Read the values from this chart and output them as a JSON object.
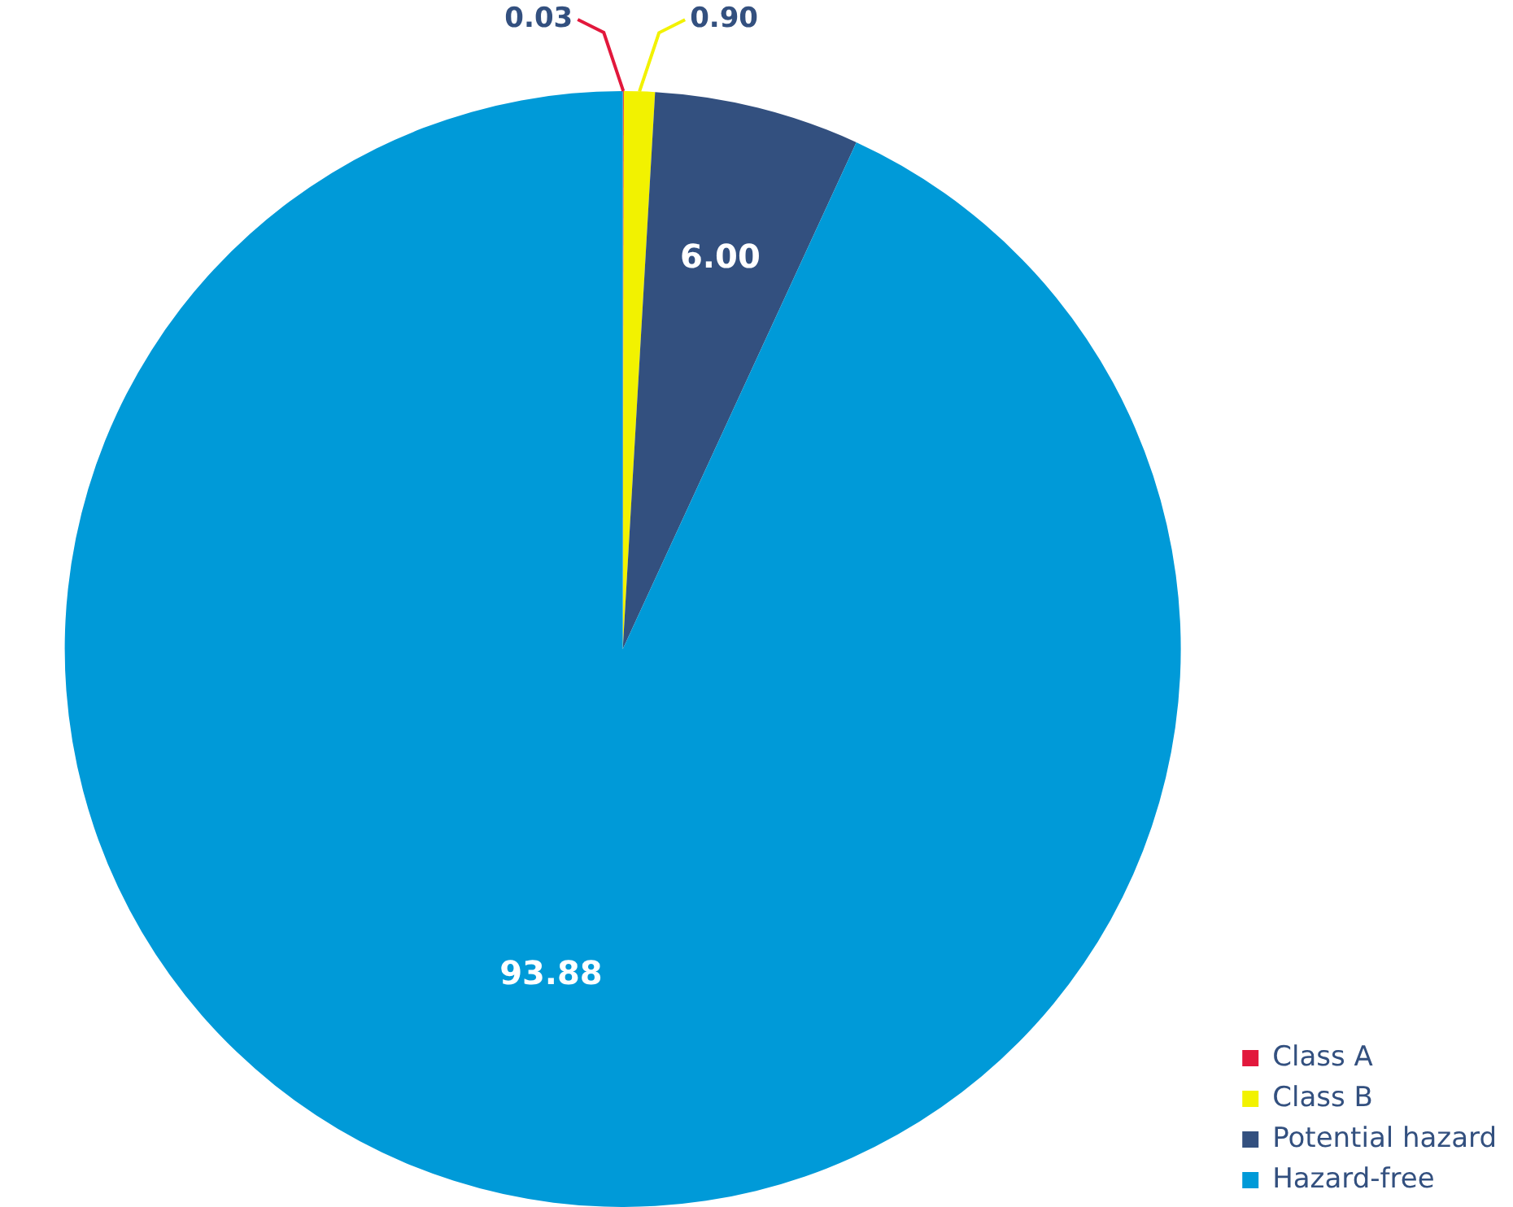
{
  "chart_data": {
    "type": "pie",
    "categories": [
      "Class A",
      "Class B",
      "Potential hazard",
      "Hazard-free"
    ],
    "values": [
      0.03,
      0.9,
      6.0,
      93.88
    ],
    "colors": [
      "#e2183c",
      "#f2f200",
      "#33507f",
      "#009ad8"
    ],
    "value_labels": [
      "0.03",
      "0.90",
      "6.00",
      "93.88"
    ],
    "legend": "bottom right"
  }
}
